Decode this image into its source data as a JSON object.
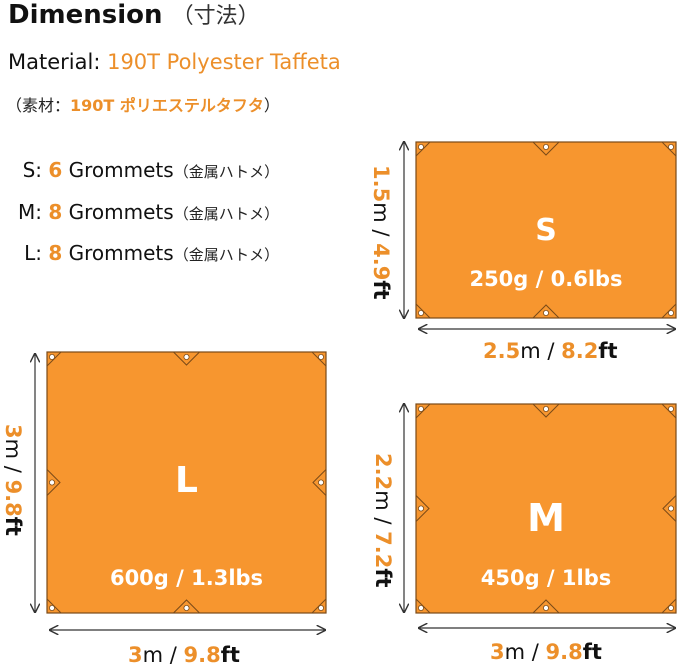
{
  "header": {
    "title": "Dimension",
    "title_jp": "（寸法）"
  },
  "material": {
    "label": "Material:",
    "value": "190T Polyester Taffeta",
    "jp_open": "（素材：",
    "jp_value": "190T ポリエステルタフタ",
    "jp_close": "）"
  },
  "grommets": [
    {
      "size": "S:",
      "count": "6",
      "label": "Grommets",
      "jp": "（金属ハトメ）"
    },
    {
      "size": "M:",
      "count": "8",
      "label": "Grommets",
      "jp": "（金属ハトメ）"
    },
    {
      "size": "L:",
      "count": "8",
      "label": "Grommets",
      "jp": "（金属ハトメ）"
    }
  ],
  "tarps": {
    "S": {
      "name": "S",
      "weight": "250g / 0.6lbs",
      "width_m": "2.5",
      "width_ft": "8.2",
      "height_m": "1.5",
      "height_ft": "4.9"
    },
    "L": {
      "name": "L",
      "weight": "600g / 1.3lbs",
      "width_m": "3",
      "width_ft": "9.8",
      "height_m": "3",
      "height_ft": "9.8"
    },
    "M": {
      "name": "M",
      "weight": "450g / 1lbs",
      "width_m": "3",
      "width_ft": "9.8",
      "height_m": "2.2",
      "height_ft": "7.2"
    }
  },
  "units": {
    "m": "m",
    "sep": " / ",
    "ft": "ft"
  },
  "colors": {
    "tarp": "#f7962f",
    "accent": "#ec8f2a",
    "text": "#111111"
  }
}
